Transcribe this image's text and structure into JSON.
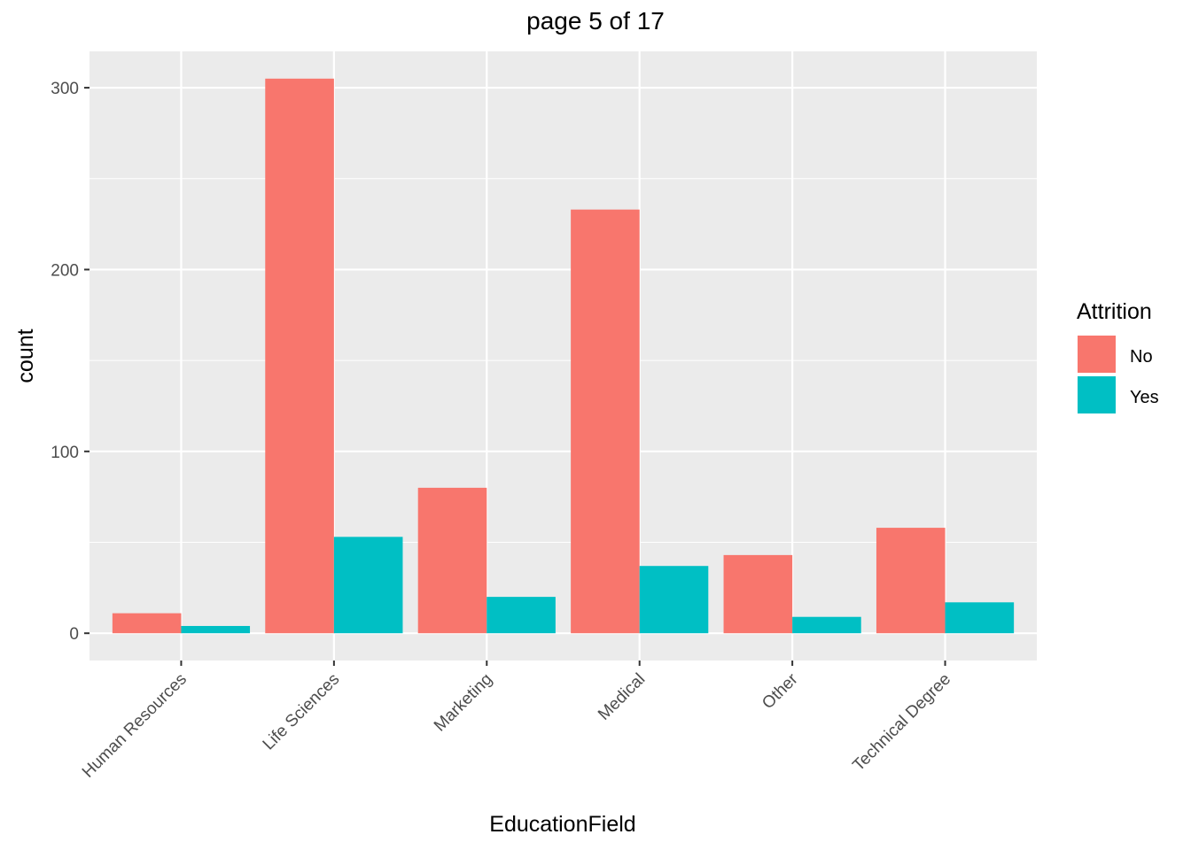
{
  "chart_data": {
    "type": "bar",
    "title": "page 5 of 17",
    "xlabel": "EducationField",
    "ylabel": "count",
    "categories": [
      "Human Resources",
      "Life Sciences",
      "Marketing",
      "Medical",
      "Other",
      "Technical Degree"
    ],
    "series": [
      {
        "name": "No",
        "color": "#F8766D",
        "values": [
          11,
          305,
          80,
          233,
          43,
          58
        ]
      },
      {
        "name": "Yes",
        "color": "#00BFC4",
        "values": [
          4,
          53,
          20,
          37,
          9,
          17
        ]
      }
    ],
    "ylim": [
      -15,
      320
    ],
    "yticks": [
      0,
      100,
      200,
      300
    ],
    "legend": {
      "title": "Attrition",
      "position": "right"
    },
    "grid": true,
    "panel_background": "#EBEBEB",
    "gridline_color": "#FFFFFF"
  }
}
